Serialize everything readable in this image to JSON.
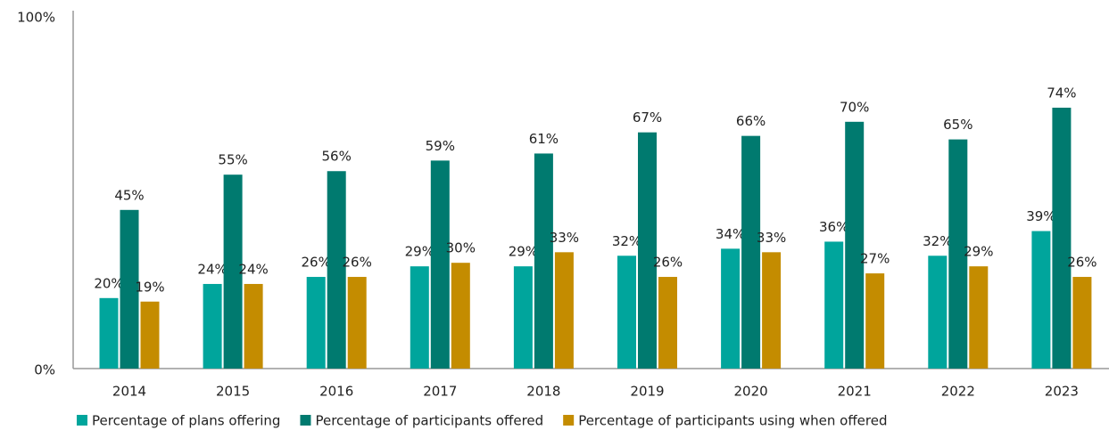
{
  "chart_data": {
    "type": "bar",
    "categories": [
      "2014",
      "2015",
      "2016",
      "2017",
      "2018",
      "2019",
      "2020",
      "2021",
      "2022",
      "2023"
    ],
    "series": [
      {
        "name": "Percentage of plans offering",
        "color": "#00a59c",
        "values": [
          20,
          24,
          26,
          29,
          29,
          32,
          34,
          36,
          32,
          39
        ],
        "value_labels": [
          "20%",
          "24%",
          "26%",
          "29%",
          "29%",
          "32%",
          "34%",
          "36%",
          "32%",
          "39%"
        ]
      },
      {
        "name": "Percentage of participants offered",
        "color": "#007a6f",
        "values": [
          45,
          55,
          56,
          59,
          61,
          67,
          66,
          70,
          65,
          74
        ],
        "value_labels": [
          "45%",
          "55%",
          "56%",
          "59%",
          "61%",
          "67%",
          "66%",
          "70%",
          "65%",
          "74%"
        ]
      },
      {
        "name": "Percentage of participants using when offered",
        "color": "#c48c00",
        "values": [
          19,
          24,
          26,
          30,
          33,
          26,
          33,
          27,
          29,
          26
        ],
        "value_labels": [
          "19%",
          "24%",
          "26%",
          "30%",
          "33%",
          "26%",
          "33%",
          "27%",
          "29%",
          "26%"
        ]
      }
    ],
    "ylim": [
      0,
      100
    ],
    "yticks": [
      {
        "value": 0,
        "label": "0%"
      },
      {
        "value": 100,
        "label": "100%"
      }
    ],
    "grid": false,
    "legend": "bottom"
  }
}
